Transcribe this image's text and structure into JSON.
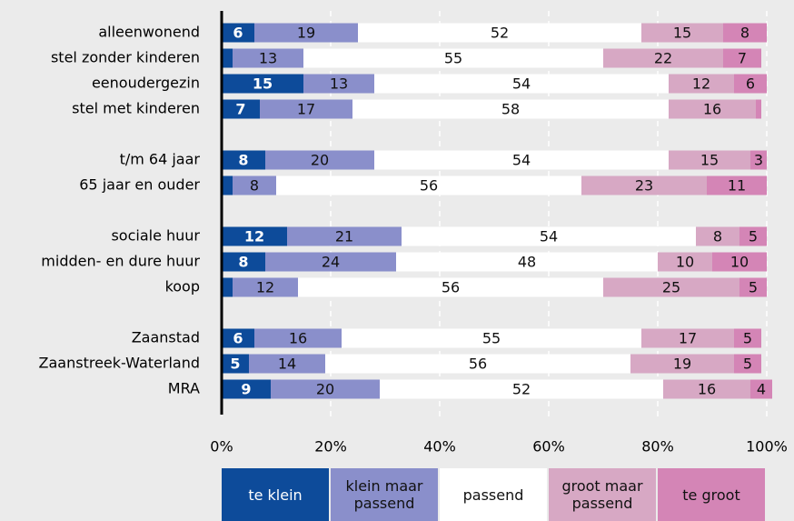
{
  "chart_data": {
    "type": "stacked-bar-horizontal",
    "categories": [
      "alleenwonend",
      "stel zonder kinderen",
      "eenoudergezin",
      "stel met kinderen",
      null,
      "t/m 64 jaar",
      "65 jaar en ouder",
      null,
      "sociale huur",
      "midden- en dure huur",
      "koop",
      null,
      "Zaanstad",
      "Zaanstreek-Waterland",
      "MRA"
    ],
    "series": [
      {
        "name": "te klein",
        "color": "#0d4b9a",
        "values": [
          6,
          2,
          15,
          7,
          null,
          8,
          2,
          null,
          12,
          8,
          2,
          null,
          6,
          5,
          9
        ]
      },
      {
        "name": "klein maar passend",
        "color": "#8a8fcb",
        "values": [
          19,
          13,
          13,
          17,
          null,
          20,
          8,
          null,
          21,
          24,
          12,
          null,
          16,
          14,
          20
        ]
      },
      {
        "name": "passend",
        "color": "#ffffff",
        "values": [
          52,
          55,
          54,
          58,
          null,
          54,
          56,
          null,
          54,
          48,
          56,
          null,
          55,
          56,
          52
        ]
      },
      {
        "name": "groot maar passend",
        "color": "#d7a8c4",
        "values": [
          15,
          22,
          12,
          16,
          null,
          15,
          23,
          null,
          8,
          10,
          25,
          null,
          17,
          19,
          16
        ]
      },
      {
        "name": "te groot",
        "color": "#d485b6",
        "values": [
          8,
          7,
          6,
          1,
          null,
          3,
          11,
          null,
          5,
          10,
          5,
          null,
          5,
          5,
          4
        ]
      }
    ],
    "xlim": [
      0,
      100
    ],
    "xticks": [
      {
        "value": 0,
        "label": "0%"
      },
      {
        "value": 20,
        "label": "20%"
      },
      {
        "value": 40,
        "label": "40%"
      },
      {
        "value": 60,
        "label": "60%"
      },
      {
        "value": 80,
        "label": "80%"
      },
      {
        "value": 100,
        "label": "100%"
      }
    ],
    "grid": true,
    "legend": "bottom"
  }
}
